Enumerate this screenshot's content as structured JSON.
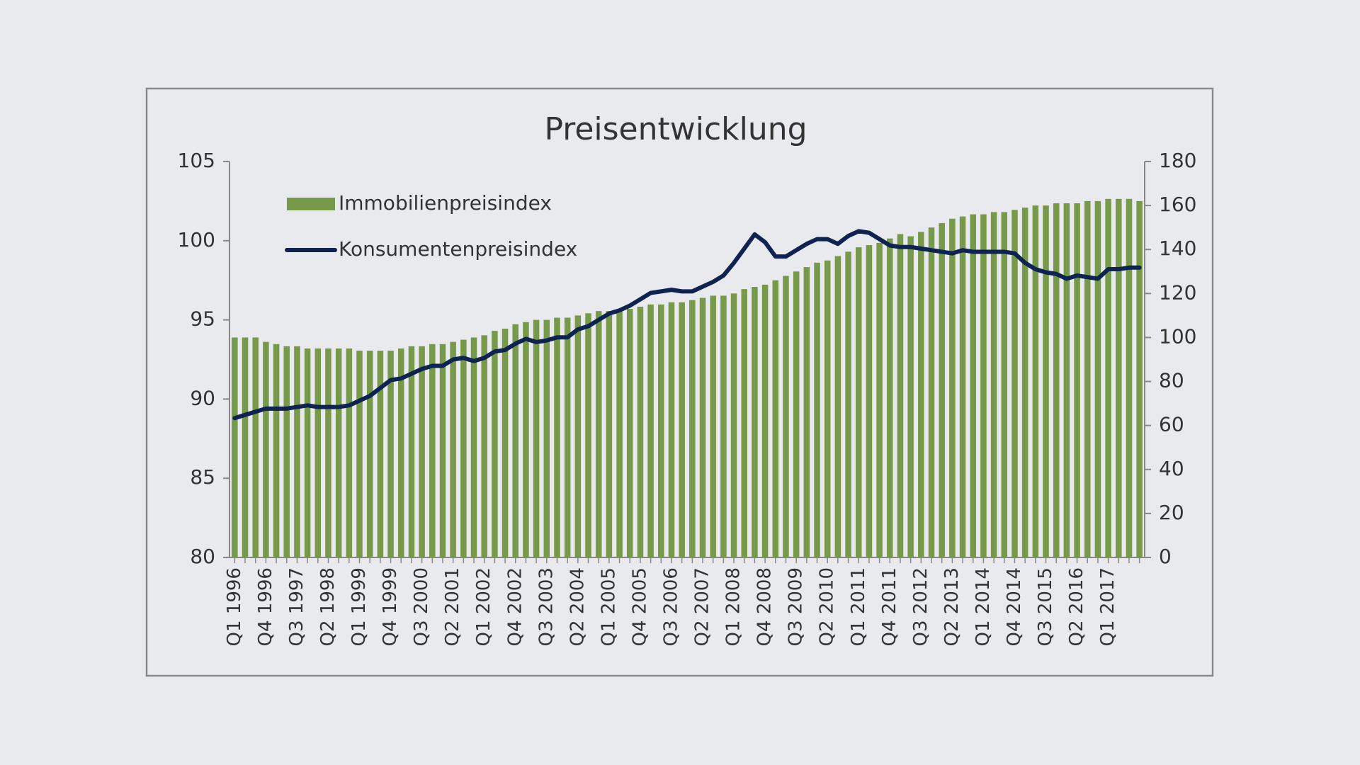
{
  "chart_data": {
    "type": "bar-line",
    "title": "Preisentwicklung",
    "categories": [
      "Q1 1996",
      null,
      null,
      "Q4 1996",
      null,
      null,
      "Q3 1997",
      null,
      null,
      "Q2 1998",
      null,
      null,
      "Q1 1999",
      null,
      null,
      "Q4 1999",
      null,
      null,
      "Q3 2000",
      null,
      null,
      "Q2 2001",
      null,
      null,
      "Q1 2002",
      null,
      null,
      "Q4 2002",
      null,
      null,
      "Q3 2003",
      null,
      null,
      "Q2 2004",
      null,
      null,
      "Q1 2005",
      null,
      null,
      "Q4 2005",
      null,
      null,
      "Q3 2006",
      null,
      null,
      "Q2 2007",
      null,
      null,
      "Q1 2008",
      null,
      null,
      "Q4 2008",
      null,
      null,
      "Q3 2009",
      null,
      null,
      "Q2 2010",
      null,
      null,
      "Q1 2011",
      null,
      null,
      "Q4 2011",
      null,
      null,
      "Q3 2012",
      null,
      null,
      "Q2 2013",
      null,
      null,
      "Q1 2014",
      null,
      null,
      "Q4 2014",
      null,
      null,
      "Q3 2015",
      null,
      null,
      "Q2 2016",
      null,
      null,
      "Q1 2017",
      null,
      null,
      null
    ],
    "series": [
      {
        "name": "Immobilienpreisindex",
        "type": "bar",
        "axis": "y2",
        "color": "#77994a",
        "values": [
          100,
          100,
          100,
          98,
          97,
          96,
          96,
          95,
          95,
          95,
          95,
          95,
          94,
          94,
          94,
          94,
          95,
          96,
          96,
          97,
          97,
          98,
          99,
          100,
          101,
          103,
          104,
          106,
          107,
          108,
          108,
          109,
          109,
          110,
          111,
          112,
          112,
          112,
          113,
          114,
          115,
          115,
          116,
          116,
          117,
          118,
          119,
          119,
          120,
          122,
          123,
          124,
          126,
          128,
          130,
          132,
          134,
          135,
          137,
          139,
          141,
          142,
          143,
          145,
          147,
          146,
          148,
          150,
          152,
          154,
          155,
          156,
          156,
          157,
          157,
          158,
          159,
          160,
          160,
          161,
          161,
          161,
          162,
          162,
          163,
          163,
          163,
          162
        ]
      },
      {
        "name": "Konsumentenpreisindex",
        "type": "line",
        "axis": "y",
        "color": "#0f2350",
        "values": [
          88.8,
          89.0,
          89.2,
          89.4,
          89.4,
          89.4,
          89.5,
          89.6,
          89.5,
          89.5,
          89.5,
          89.6,
          89.9,
          90.2,
          90.7,
          91.2,
          91.3,
          91.6,
          91.9,
          92.1,
          92.1,
          92.5,
          92.6,
          92.4,
          92.6,
          93.0,
          93.1,
          93.5,
          93.8,
          93.6,
          93.7,
          93.9,
          93.9,
          94.4,
          94.6,
          95.0,
          95.4,
          95.6,
          95.9,
          96.3,
          96.7,
          96.8,
          96.9,
          96.8,
          96.8,
          97.1,
          97.4,
          97.8,
          98.6,
          99.5,
          100.4,
          99.9,
          99.0,
          99.0,
          99.4,
          99.8,
          100.1,
          100.1,
          99.8,
          100.3,
          100.6,
          100.5,
          100.1,
          99.7,
          99.6,
          99.6,
          99.5,
          99.4,
          99.3,
          99.2,
          99.4,
          99.3,
          99.3,
          99.3,
          99.3,
          99.2,
          98.6,
          98.2,
          98.0,
          97.9,
          97.6,
          97.8,
          97.7,
          97.6,
          98.2,
          98.2,
          98.3,
          98.3
        ]
      }
    ],
    "ylim": [
      80,
      105
    ],
    "yticks": [
      80,
      85,
      90,
      95,
      100,
      105
    ],
    "y2lim": [
      0,
      180
    ],
    "y2ticks": [
      0,
      20,
      40,
      60,
      80,
      100,
      120,
      140,
      160,
      180
    ],
    "legend": "upper left"
  }
}
